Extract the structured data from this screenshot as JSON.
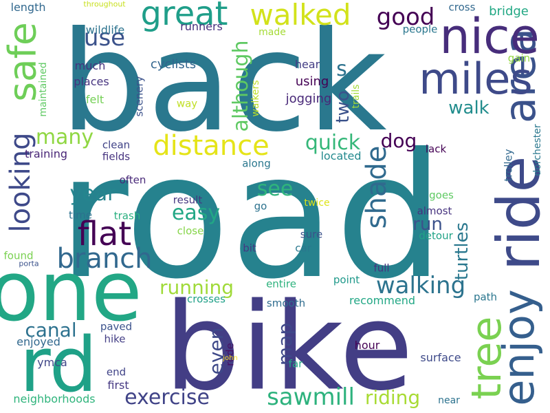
{
  "words": [
    {
      "text": "road",
      "color": "#26828e",
      "vertical": false
    },
    {
      "text": "back",
      "color": "#2a788e",
      "vertical": false
    },
    {
      "text": "bike",
      "color": "#433e85",
      "vertical": false
    },
    {
      "text": "one",
      "color": "#22a785",
      "vertical": false
    },
    {
      "text": "rd",
      "color": "#1fa187",
      "vertical": false
    },
    {
      "text": "ride",
      "color": "#3e4a89",
      "vertical": true
    },
    {
      "text": "area",
      "color": "#3b528b",
      "vertical": true
    },
    {
      "text": "enjoy",
      "color": "#355f8d",
      "vertical": true
    },
    {
      "text": "tree",
      "color": "#7ad151",
      "vertical": true
    },
    {
      "text": "safe",
      "color": "#6ece58",
      "vertical": true
    },
    {
      "text": "looking",
      "color": "#3e4989",
      "vertical": true
    },
    {
      "text": "nice",
      "color": "#472d7b",
      "vertical": false
    },
    {
      "text": "miles",
      "color": "#3e4a89",
      "vertical": false
    },
    {
      "text": "great",
      "color": "#1f9e89",
      "vertical": false
    },
    {
      "text": "walked",
      "color": "#d2e21b",
      "vertical": false
    },
    {
      "text": "distance",
      "color": "#e5e419",
      "vertical": false
    },
    {
      "text": "flat",
      "color": "#440154",
      "vertical": false
    },
    {
      "text": "branch",
      "color": "#31688e",
      "vertical": false
    },
    {
      "text": "shade",
      "color": "#306a8e",
      "vertical": true
    },
    {
      "text": "although",
      "color": "#5ec962",
      "vertical": true
    },
    {
      "text": "walking",
      "color": "#2c738e",
      "vertical": false
    },
    {
      "text": "sawmill",
      "color": "#2db27d",
      "vertical": false
    },
    {
      "text": "exercise",
      "color": "#404387",
      "vertical": false
    },
    {
      "text": "good",
      "color": "#440154",
      "vertical": false
    },
    {
      "text": "use",
      "color": "#3b528b",
      "vertical": false
    },
    {
      "text": "s",
      "color": "#2c728e",
      "vertical": false
    },
    {
      "text": "quick",
      "color": "#35b779",
      "vertical": false
    },
    {
      "text": "dog",
      "color": "#440154",
      "vertical": false
    },
    {
      "text": "many",
      "color": "#90d743",
      "vertical": false
    },
    {
      "text": "year",
      "color": "#25858e",
      "vertical": false
    },
    {
      "text": "easy",
      "color": "#22a785",
      "vertical": false
    },
    {
      "text": "see",
      "color": "#2fb47c",
      "vertical": false
    },
    {
      "text": "run",
      "color": "#3b528b",
      "vertical": false
    },
    {
      "text": "walk",
      "color": "#228d8d",
      "vertical": false
    },
    {
      "text": "running",
      "color": "#a0da39",
      "vertical": false
    },
    {
      "text": "canal",
      "color": "#2c718e",
      "vertical": false
    },
    {
      "text": "riding",
      "color": "#a8db34",
      "vertical": false
    },
    {
      "text": "two",
      "color": "#3b528b",
      "vertical": true
    },
    {
      "text": "even",
      "color": "#3e4989",
      "vertical": true
    },
    {
      "text": "map",
      "color": "#3f4889",
      "vertical": true
    },
    {
      "text": "turtles",
      "color": "#2a788e",
      "vertical": true
    },
    {
      "text": "bridge",
      "color": "#22a884",
      "vertical": false
    },
    {
      "text": "cross",
      "color": "#31688e",
      "vertical": false
    },
    {
      "text": "people",
      "color": "#2a778e",
      "vertical": false
    },
    {
      "text": "wildlife",
      "color": "#2c728e",
      "vertical": false
    },
    {
      "text": "runners",
      "color": "#472f7d",
      "vertical": false
    },
    {
      "text": "length",
      "color": "#31688e",
      "vertical": false
    },
    {
      "text": "throughout",
      "color": "#c8e020",
      "vertical": false
    },
    {
      "text": "made",
      "color": "#a5db36",
      "vertical": false
    },
    {
      "text": "gain",
      "color": "#93d741",
      "vertical": false
    },
    {
      "text": "much",
      "color": "#46327e",
      "vertical": false
    },
    {
      "text": "places",
      "color": "#46337f",
      "vertical": false
    },
    {
      "text": "cyclists",
      "color": "#32658e",
      "vertical": false
    },
    {
      "text": "using",
      "color": "#440154",
      "vertical": false
    },
    {
      "text": "hear",
      "color": "#433e85",
      "vertical": false
    },
    {
      "text": "jogging",
      "color": "#482878",
      "vertical": false
    },
    {
      "text": "felt",
      "color": "#74d055",
      "vertical": false
    },
    {
      "text": "way",
      "color": "#c0df25",
      "vertical": false
    },
    {
      "text": "scenery",
      "color": "#3b528b",
      "vertical": true
    },
    {
      "text": "walkers",
      "color": "#bade28",
      "vertical": true
    },
    {
      "text": "trails",
      "color": "#a2da37",
      "vertical": true
    },
    {
      "text": "maintained",
      "color": "#5ec962",
      "vertical": true
    },
    {
      "text": "dorchester",
      "color": "#2a788e",
      "vertical": true
    },
    {
      "text": "trolley",
      "color": "#31688e",
      "vertical": true
    },
    {
      "text": "training",
      "color": "#482576",
      "vertical": false
    },
    {
      "text": "clean",
      "color": "#404387",
      "vertical": false
    },
    {
      "text": "fields",
      "color": "#46337f",
      "vertical": false
    },
    {
      "text": "lack",
      "color": "#440154",
      "vertical": false
    },
    {
      "text": "located",
      "color": "#23898e",
      "vertical": false
    },
    {
      "text": "along",
      "color": "#2a778e",
      "vertical": false
    },
    {
      "text": "often",
      "color": "#482878",
      "vertical": false
    },
    {
      "text": "result",
      "color": "#453781",
      "vertical": false
    },
    {
      "text": "go",
      "color": "#2c728e",
      "vertical": false
    },
    {
      "text": "twice",
      "color": "#dde318",
      "vertical": false
    },
    {
      "text": "goes",
      "color": "#5ec962",
      "vertical": false
    },
    {
      "text": "almost",
      "color": "#46337f",
      "vertical": false
    },
    {
      "text": "time",
      "color": "#2c718e",
      "vertical": false
    },
    {
      "text": "trash",
      "color": "#29af7f",
      "vertical": false
    },
    {
      "text": "close",
      "color": "#86d549",
      "vertical": false
    },
    {
      "text": "sure",
      "color": "#3b528b",
      "vertical": false
    },
    {
      "text": "detour",
      "color": "#20a386",
      "vertical": false
    },
    {
      "text": "bit",
      "color": "#443983",
      "vertical": false
    },
    {
      "text": "car",
      "color": "#2a788e",
      "vertical": false
    },
    {
      "text": "found",
      "color": "#7ad151",
      "vertical": false
    },
    {
      "text": "porta",
      "color": "#3b528b",
      "vertical": false
    },
    {
      "text": "full",
      "color": "#46337f",
      "vertical": false
    },
    {
      "text": "point",
      "color": "#1f998a",
      "vertical": false
    },
    {
      "text": "entire",
      "color": "#2db27d",
      "vertical": false
    },
    {
      "text": "crosses",
      "color": "#1fa088",
      "vertical": false
    },
    {
      "text": "smooth",
      "color": "#2f6c8e",
      "vertical": false
    },
    {
      "text": "recommend",
      "color": "#22a785",
      "vertical": false
    },
    {
      "text": "path",
      "color": "#2a768e",
      "vertical": false
    },
    {
      "text": "paved",
      "color": "#3b528b",
      "vertical": false
    },
    {
      "text": "hike",
      "color": "#433e85",
      "vertical": false
    },
    {
      "text": "enjoyed",
      "color": "#31688e",
      "vertical": false
    },
    {
      "text": "rode",
      "color": "#471063",
      "vertical": true
    },
    {
      "text": "john",
      "color": "#fde725",
      "vertical": false
    },
    {
      "text": "hour",
      "color": "#440154",
      "vertical": false
    },
    {
      "text": "surface",
      "color": "#3e4a89",
      "vertical": false
    },
    {
      "text": "ymca",
      "color": "#404688",
      "vertical": false
    },
    {
      "text": "end",
      "color": "#404387",
      "vertical": false
    },
    {
      "text": "far",
      "color": "#22a884",
      "vertical": false
    },
    {
      "text": "first",
      "color": "#453882",
      "vertical": false
    },
    {
      "text": "neighborhoods",
      "color": "#2fb47c",
      "vertical": false
    },
    {
      "text": "near",
      "color": "#2c728e",
      "vertical": false
    }
  ]
}
